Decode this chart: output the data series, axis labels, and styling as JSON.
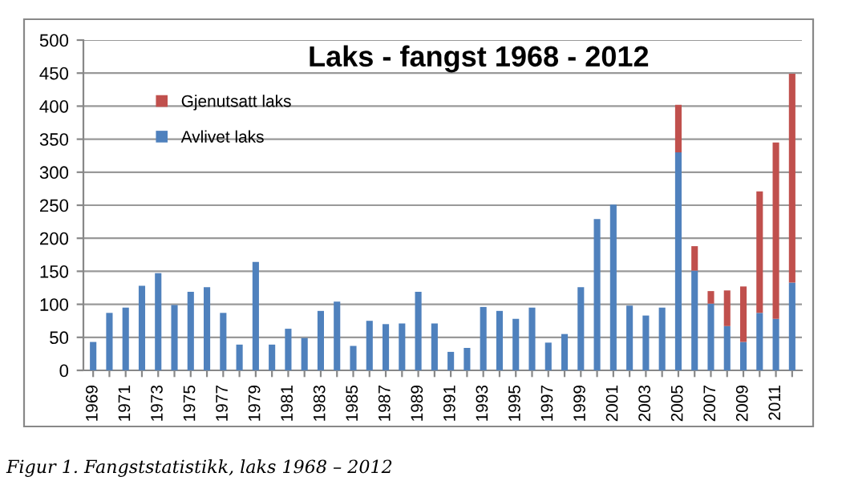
{
  "chart_data": {
    "type": "bar",
    "title": "Laks - fangst 1968 - 2012",
    "stacked": true,
    "grid": "y",
    "legend": "top left",
    "categories": [
      "1969",
      null,
      "1971",
      null,
      "1973",
      null,
      "1975",
      null,
      "1977",
      null,
      "1979",
      null,
      "1981",
      null,
      "1983",
      null,
      "1985",
      null,
      "1987",
      null,
      "1989",
      null,
      "1991",
      null,
      "1993",
      null,
      "1995",
      null,
      "1997",
      null,
      "1999",
      null,
      "2001",
      null,
      "2003",
      null,
      "2005",
      null,
      "2007",
      null,
      "2009",
      null,
      "2011",
      null
    ],
    "series": [
      {
        "name": "Avlivet laks",
        "color": "#4f81bd",
        "values": [
          43,
          87,
          95,
          128,
          147,
          99,
          119,
          126,
          87,
          39,
          164,
          39,
          63,
          49,
          90,
          104,
          37,
          75,
          70,
          71,
          119,
          71,
          28,
          34,
          96,
          90,
          78,
          95,
          42,
          55,
          126,
          229,
          251,
          98,
          83,
          95,
          330,
          151,
          101,
          67,
          43,
          87,
          78,
          133
        ]
      },
      {
        "name": "Gjenutsatt laks",
        "color": "#c0504d",
        "values": [
          null,
          null,
          null,
          null,
          null,
          null,
          null,
          null,
          null,
          null,
          null,
          null,
          null,
          null,
          null,
          null,
          null,
          null,
          null,
          null,
          null,
          null,
          null,
          null,
          null,
          null,
          null,
          null,
          null,
          null,
          null,
          null,
          null,
          null,
          null,
          null,
          72,
          37,
          19,
          54,
          84,
          184,
          267,
          316
        ]
      }
    ],
    "ylim": [
      0,
      500
    ],
    "yticks": [
      0,
      50,
      100,
      150,
      200,
      250,
      300,
      350,
      400,
      450,
      500
    ],
    "annotations": [
      "Figur 1. Fangststatistikk, laks 1968 – 2012"
    ]
  }
}
